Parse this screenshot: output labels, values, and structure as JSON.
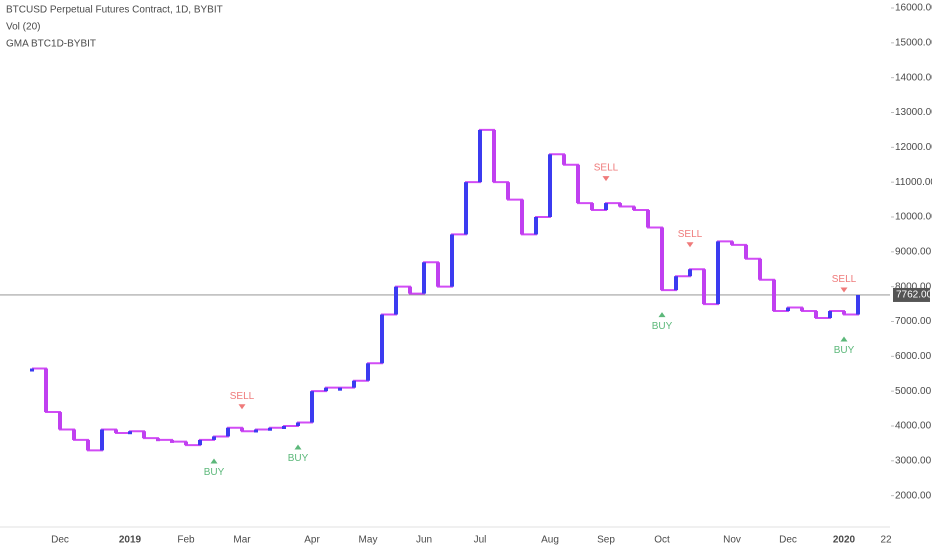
{
  "chart_data": {
    "type": "line",
    "title": "BTCUSD Perpetual Futures Contract, 1D, BYBIT",
    "indicators": [
      "Vol (20)",
      "GMA BTC1D-BYBIT"
    ],
    "categories": [
      null,
      null,
      "Dec",
      null,
      null,
      null,
      null,
      "2019",
      null,
      null,
      null,
      "Feb",
      null,
      null,
      null,
      "Mar",
      null,
      null,
      null,
      null,
      "Apr",
      null,
      null,
      null,
      "May",
      null,
      null,
      null,
      "Jun",
      null,
      null,
      null,
      "Jul",
      null,
      null,
      null,
      null,
      "Aug",
      null,
      null,
      null,
      "Sep",
      null,
      null,
      null,
      "Oct",
      null,
      null,
      null,
      null,
      "Nov",
      null,
      null,
      null,
      "Dec",
      null,
      null,
      null,
      "2020",
      null,
      null,
      "22"
    ],
    "bold_categories": [
      "2019",
      "2020"
    ],
    "series": [
      {
        "name": "BTCUSD",
        "color": "#d14cf5",
        "up_color": "#3b3bf0",
        "down_color": "#c040f0",
        "values": [
          5650,
          4400,
          3900,
          3600,
          3300,
          3900,
          3800,
          3850,
          3650,
          3600,
          3550,
          3450,
          3600,
          3700,
          3950,
          3850,
          3900,
          3950,
          4000,
          4100,
          5000,
          5100,
          5100,
          5300,
          5800,
          7200,
          8000,
          7800,
          8700,
          8000,
          9500,
          11000,
          12500,
          11000,
          10500,
          9500,
          10000,
          11800,
          11500,
          10400,
          10200,
          10400,
          10300,
          10200,
          9700,
          7900,
          8300,
          8500,
          7500,
          9300,
          9200,
          8800,
          8200,
          7300,
          7400,
          7300,
          7100,
          7300,
          7200,
          7762,
          null,
          null
        ]
      }
    ],
    "annotations": [
      {
        "x": 13,
        "text": "BUY",
        "marker": "triangle-up",
        "color": "#5cb87a"
      },
      {
        "x": 15,
        "text": "SELL",
        "marker": "triangle-down",
        "color": "#ef7a7a"
      },
      {
        "x": 19,
        "text": "BUY",
        "marker": "triangle-up",
        "color": "#5cb87a"
      },
      {
        "x": 41,
        "text": "SELL",
        "marker": "triangle-down",
        "color": "#ef7a7a"
      },
      {
        "x": 45,
        "text": "BUY",
        "marker": "triangle-up",
        "color": "#5cb87a"
      },
      {
        "x": 47,
        "text": "SELL",
        "marker": "triangle-down",
        "color": "#ef7a7a"
      },
      {
        "x": 58,
        "text": "SELL",
        "marker": "triangle-down",
        "color": "#ef7a7a"
      },
      {
        "x": 58,
        "text": "BUY",
        "marker": "triangle-up",
        "color": "#5cb87a"
      }
    ],
    "last_price": {
      "value": 7762,
      "label": "7762.00"
    },
    "ylim": [
      1100,
      16230
    ],
    "yticks": [
      {
        "value": 2000,
        "label": "2000.00"
      },
      {
        "value": 3000,
        "label": "3000.00"
      },
      {
        "value": 4000,
        "label": "4000.00"
      },
      {
        "value": 5000,
        "label": "5000.00"
      },
      {
        "value": 6000,
        "label": "6000.00"
      },
      {
        "value": 7000,
        "label": "7000.00"
      },
      {
        "value": 8000,
        "label": "8000.00"
      },
      {
        "value": 9000,
        "label": "9000.00"
      },
      {
        "value": 10000,
        "label": "10000.00"
      },
      {
        "value": 11000,
        "label": "11000.00"
      },
      {
        "value": 12000,
        "label": "12000.00"
      },
      {
        "value": 13000,
        "label": "13000.00"
      },
      {
        "value": 14000,
        "label": "14000.00"
      },
      {
        "value": 15000,
        "label": "15000.00"
      },
      {
        "value": 16000,
        "label": "16000.00"
      }
    ],
    "grid": false
  }
}
